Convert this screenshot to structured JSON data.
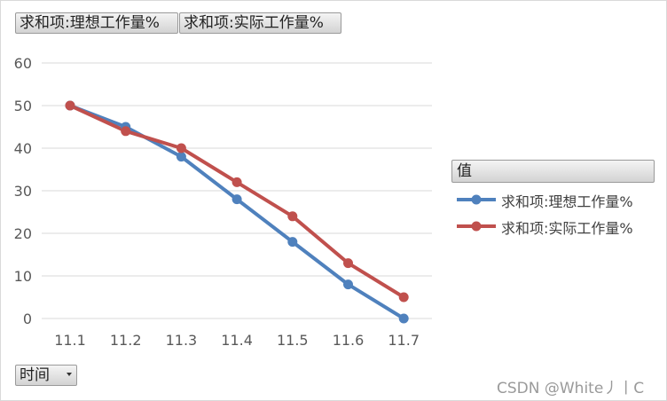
{
  "field_buttons": {
    "ideal_label": "求和项:理想工作量%",
    "actual_label": "求和项:实际工作量%",
    "time_label": "时间"
  },
  "legend": {
    "title": "值"
  },
  "watermark": "CSDN @White丿丨C",
  "colors": {
    "ideal": "#4F81BD",
    "actual": "#C0504D",
    "grid": "#d9d9d9"
  },
  "chart_data": {
    "type": "line",
    "categories": [
      "11.1",
      "11.2",
      "11.3",
      "11.4",
      "11.5",
      "11.6",
      "11.7"
    ],
    "series": [
      {
        "name": "求和项:理想工作量%",
        "values": [
          50,
          45,
          38,
          28,
          18,
          8,
          0
        ]
      },
      {
        "name": "求和项:实际工作量%",
        "values": [
          50,
          44,
          40,
          32,
          24,
          13,
          5
        ]
      }
    ],
    "yticks": [
      0,
      10,
      20,
      30,
      40,
      50,
      60
    ],
    "ylim": [
      0,
      60
    ],
    "grid": true,
    "legend_position": "right"
  }
}
